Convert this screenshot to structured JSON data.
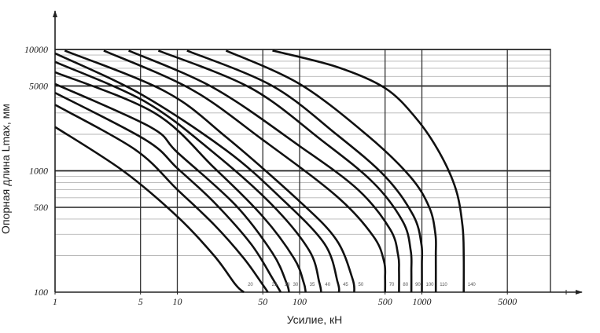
{
  "chart_data": {
    "type": "line",
    "x_scale": "log",
    "y_scale": "log",
    "xlim": [
      1,
      10000
    ],
    "ylim": [
      100,
      10000
    ],
    "xlabel": "Усилие, кН",
    "ylabel": "Опорная длина Lmax, мм",
    "x_tick_labels": [
      {
        "value": 1,
        "label": "1"
      },
      {
        "value": 5,
        "label": "5"
      },
      {
        "value": 10,
        "label": "10"
      },
      {
        "value": 50,
        "label": "50"
      },
      {
        "value": 100,
        "label": "100"
      },
      {
        "value": 500,
        "label": "500"
      },
      {
        "value": 1000,
        "label": "1000"
      },
      {
        "value": 5000,
        "label": "5000"
      }
    ],
    "y_tick_labels": [
      {
        "value": 100,
        "label": "100"
      },
      {
        "value": 500,
        "label": "500"
      },
      {
        "value": 1000,
        "label": "1000"
      },
      {
        "value": 5000,
        "label": "5000"
      },
      {
        "value": 10000,
        "label": "10000"
      }
    ],
    "grid": true,
    "series": [
      {
        "name": "20",
        "end_force": 35,
        "points": [
          [
            1,
            2300
          ],
          [
            3.6,
            1000
          ],
          [
            10,
            420
          ],
          [
            20,
            200
          ],
          [
            30,
            115
          ],
          [
            35,
            100
          ]
        ]
      },
      {
        "name": "25",
        "end_force": 55,
        "points": [
          [
            1,
            3500
          ],
          [
            4.5,
            1500
          ],
          [
            10,
            700
          ],
          [
            20,
            360
          ],
          [
            35,
            190
          ],
          [
            50,
            115
          ],
          [
            55,
            100
          ]
        ]
      },
      {
        "name": "28",
        "end_force": 70,
        "points": [
          [
            1,
            4400
          ],
          [
            5.5,
            1800
          ],
          [
            10,
            1050
          ],
          [
            20,
            550
          ],
          [
            40,
            250
          ],
          [
            60,
            130
          ],
          [
            70,
            100
          ]
        ]
      },
      {
        "name": "30",
        "end_force": 82,
        "points": [
          [
            1,
            5200
          ],
          [
            6,
            2300
          ],
          [
            10,
            1420
          ],
          [
            30,
            520
          ],
          [
            60,
            210
          ],
          [
            78,
            120
          ],
          [
            82,
            100
          ]
        ]
      },
      {
        "name": "35",
        "end_force": 112,
        "points": [
          [
            1,
            6500
          ],
          [
            6.5,
            3000
          ],
          [
            20,
            1060
          ],
          [
            50,
            420
          ],
          [
            90,
            190
          ],
          [
            108,
            120
          ],
          [
            112,
            100
          ]
        ]
      },
      {
        "name": "40",
        "end_force": 150,
        "points": [
          [
            1,
            7900
          ],
          [
            5.5,
            3700
          ],
          [
            20,
            1400
          ],
          [
            60,
            520
          ],
          [
            120,
            220
          ],
          [
            145,
            120
          ],
          [
            150,
            100
          ]
        ]
      },
      {
        "name": "45",
        "end_force": 210,
        "points": [
          [
            1,
            9300
          ],
          [
            5,
            4300
          ],
          [
            25,
            1480
          ],
          [
            70,
            600
          ],
          [
            160,
            250
          ],
          [
            205,
            120
          ],
          [
            210,
            100
          ]
        ]
      },
      {
        "name": "50",
        "end_force": 280,
        "points": [
          [
            1.2,
            9800
          ],
          [
            8,
            4500
          ],
          [
            25,
            1900
          ],
          [
            100,
            560
          ],
          [
            200,
            270
          ],
          [
            270,
            130
          ],
          [
            280,
            100
          ]
        ]
      },
      {
        "name": "70",
        "end_force": 500,
        "points": [
          [
            2.5,
            9800
          ],
          [
            13,
            4700
          ],
          [
            50,
            1800
          ],
          [
            200,
            620
          ],
          [
            400,
            290
          ],
          [
            490,
            180
          ],
          [
            500,
            130
          ],
          [
            500,
            100
          ]
        ]
      },
      {
        "name": "80",
        "end_force": 650,
        "points": [
          [
            4,
            9800
          ],
          [
            20,
            4800
          ],
          [
            100,
            1600
          ],
          [
            300,
            700
          ],
          [
            550,
            330
          ],
          [
            640,
            200
          ],
          [
            650,
            150
          ],
          [
            650,
            100
          ]
        ]
      },
      {
        "name": "90",
        "end_force": 820,
        "points": [
          [
            7,
            9800
          ],
          [
            40,
            4800
          ],
          [
            150,
            1800
          ],
          [
            400,
            800
          ],
          [
            700,
            380
          ],
          [
            810,
            220
          ],
          [
            820,
            150
          ],
          [
            820,
            100
          ]
        ]
      },
      {
        "name": "100",
        "end_force": 1000,
        "points": [
          [
            12,
            9800
          ],
          [
            60,
            5000
          ],
          [
            200,
            2000
          ],
          [
            500,
            900
          ],
          [
            850,
            430
          ],
          [
            990,
            250
          ],
          [
            1000,
            170
          ],
          [
            1000,
            100
          ]
        ]
      },
      {
        "name": "110",
        "end_force": 1300,
        "points": [
          [
            25,
            9800
          ],
          [
            100,
            5200
          ],
          [
            350,
            2000
          ],
          [
            800,
            900
          ],
          [
            1150,
            500
          ],
          [
            1290,
            300
          ],
          [
            1300,
            200
          ],
          [
            1300,
            100
          ]
        ]
      },
      {
        "name": "140",
        "end_force": 2200,
        "points": [
          [
            60,
            9800
          ],
          [
            200,
            7200
          ],
          [
            500,
            4800
          ],
          [
            900,
            2700
          ],
          [
            1400,
            1400
          ],
          [
            1900,
            700
          ],
          [
            2150,
            350
          ],
          [
            2200,
            200
          ],
          [
            2200,
            100
          ]
        ]
      }
    ]
  }
}
